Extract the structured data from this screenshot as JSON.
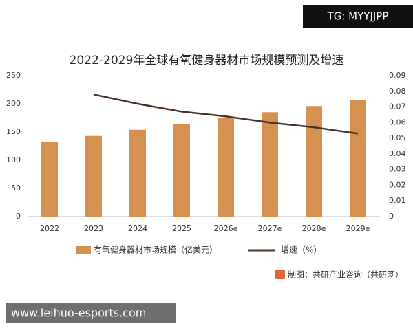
{
  "chart_data": {
    "type": "bar-line",
    "title": "2022-2029年全球有氧健身器材市场规模预测及增速",
    "categories": [
      "2022",
      "2023",
      "2024",
      "2025",
      "2026e",
      "2027e",
      "2028e",
      "2029e"
    ],
    "series": [
      {
        "name": "有氧健身器材市场规模（亿美元）",
        "color": "#d4914f",
        "values": [
          133,
          143,
          154,
          164,
          175,
          185,
          196,
          207
        ]
      },
      {
        "name": "增速（%）",
        "color": "#4a3428",
        "axis": "y2",
        "values": [
          null,
          0.078,
          0.072,
          0.067,
          0.064,
          0.06,
          0.057,
          0.053
        ]
      }
    ],
    "ylim": [
      0,
      250
    ],
    "yticks": [
      0,
      50,
      100,
      150,
      200,
      250
    ],
    "y2lim": [
      0,
      0.09
    ],
    "y2ticks": [
      0,
      0.01,
      0.02,
      0.03,
      0.04,
      0.05,
      0.06,
      0.07,
      0.08,
      0.09
    ],
    "grid": false,
    "legend": "bottom",
    "source": "制图：共研产业咨询（共研网）"
  },
  "header_badge": "TG: MYYJJPP",
  "footer_link": "www.leihuo-esports.com"
}
